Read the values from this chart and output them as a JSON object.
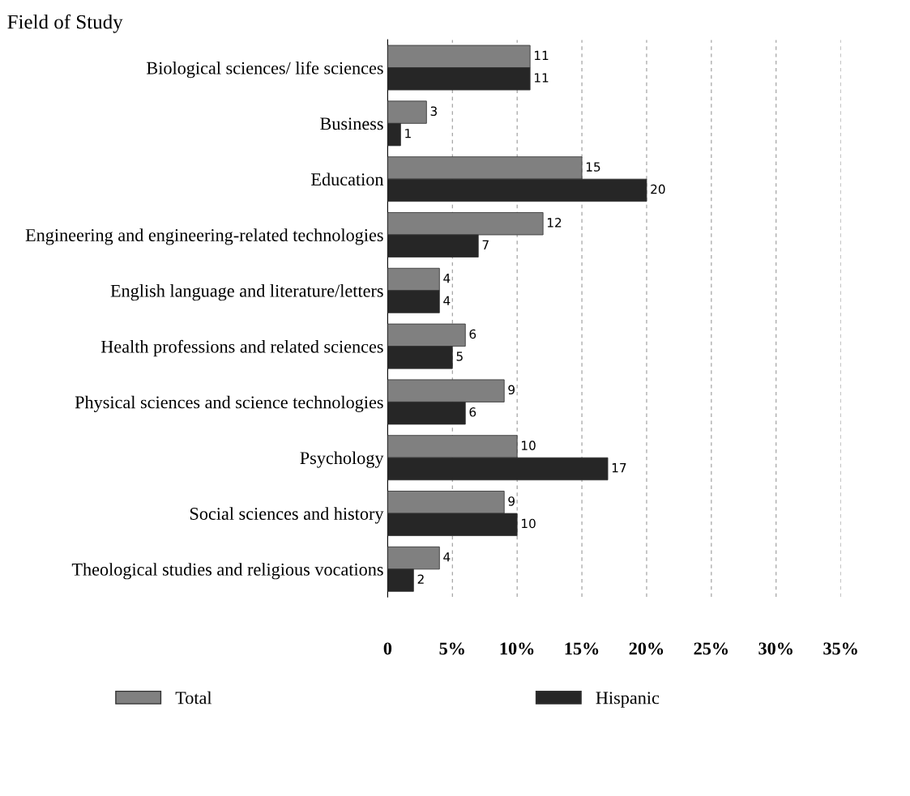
{
  "chart_data": {
    "type": "bar",
    "orientation": "horizontal",
    "title": "Field of Study",
    "categories": [
      "Biological sciences/ life sciences",
      "Business",
      "Education",
      "Engineering and engineering-related technologies",
      "English language and literature/letters",
      "Health professions and related sciences",
      "Physical sciences and science technologies",
      "Psychology",
      "Social sciences and history",
      "Theological studies and religious vocations"
    ],
    "series": [
      {
        "name": "Total",
        "color": "#808080",
        "values": [
          11,
          3,
          15,
          12,
          4,
          6,
          9,
          10,
          9,
          4
        ]
      },
      {
        "name": "Hispanic",
        "color": "#262626",
        "values": [
          11,
          1,
          20,
          7,
          4,
          5,
          6,
          17,
          10,
          2
        ]
      }
    ],
    "xlim": [
      0,
      35
    ],
    "xticks": [
      0,
      {
        "value": 5,
        "label": "5%"
      },
      {
        "value": 10,
        "label": "10%"
      },
      {
        "value": 15,
        "label": "15%"
      },
      {
        "value": 20,
        "label": "20%"
      },
      {
        "value": 25,
        "label": "25%"
      },
      {
        "value": 30,
        "label": "30%"
      },
      {
        "value": 35,
        "label": "35%"
      }
    ],
    "grid": "x",
    "data_labels": true,
    "legend": "bottom"
  }
}
